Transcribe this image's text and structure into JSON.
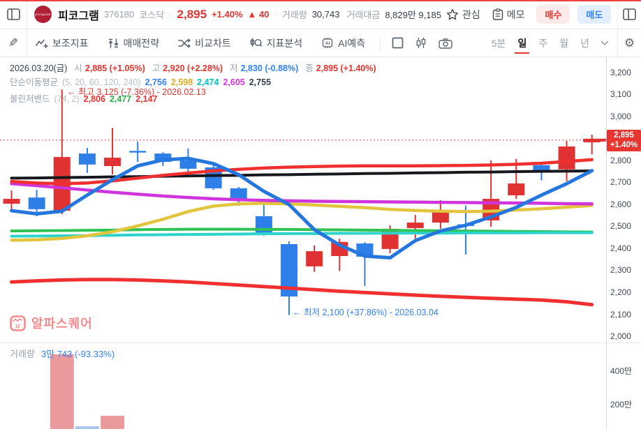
{
  "header": {
    "logo_text": "picogram",
    "stock_name": "피코그램",
    "code": "376180",
    "market": "코스닥",
    "sep": "·",
    "price": "2,895",
    "change_pct": "+1.40%",
    "change_arrow_abs": "▲ 40",
    "volume_label": "거래량",
    "volume_value": "30,743",
    "value_label": "거래대금",
    "value_value": "8,829만 9,185",
    "watch_label": "관심",
    "memo_label": "메모",
    "buy_label": "매수",
    "sell_label": "매도"
  },
  "toolbar": {
    "items": [
      {
        "label": "보조지표"
      },
      {
        "label": "매매전략"
      },
      {
        "label": "비교차트"
      },
      {
        "label": "지표분석"
      },
      {
        "label": "AI예측"
      }
    ],
    "ai_chip_text": "AI",
    "timeframes": [
      {
        "label": "5분",
        "active": false
      },
      {
        "label": "일",
        "active": true
      },
      {
        "label": "주",
        "active": false
      },
      {
        "label": "월",
        "active": false
      },
      {
        "label": "년",
        "active": false
      }
    ]
  },
  "chart": {
    "info_line1": {
      "date": "2026.03.20(금)",
      "open_label": "시",
      "open": "2,885 (+1.05%)",
      "high_label": "고",
      "high": "2,920 (+2.28%)",
      "low_label": "저",
      "low": "2,830 (-0.88%)",
      "close_label": "종",
      "close": "2,895 (+1.40%)"
    },
    "info_line2": {
      "name": "단순이동평균",
      "params": "(5, 20, 60, 120, 240)",
      "v1": "2,756",
      "v2": "2,598",
      "v3": "2,474",
      "v4": "2,605",
      "v5": "2,755"
    },
    "info_line3": {
      "name": "볼린저밴드",
      "params": "(74, 2)",
      "v1": "2,806",
      "v2": "2,477",
      "v3": "2,147"
    },
    "annotation_high": "← 최고 3,125 (-7.36%) - 2026.02.13",
    "annotation_low": "← 최저 2,100 (+37.86%) - 2026.03.04",
    "watermark": "알파스퀘어",
    "volume_label": "거래량",
    "volume_value": "3만 743 (-93.33%)",
    "price_marker": {
      "price": "2,895",
      "pct": "+1.40%"
    },
    "y_ticks": [
      {
        "label": "3,200",
        "price": 3200
      },
      {
        "label": "3,100",
        "price": 3100
      },
      {
        "label": "3,000",
        "price": 3000
      },
      {
        "label": "2,800",
        "price": 2800
      },
      {
        "label": "2,700",
        "price": 2700
      },
      {
        "label": "2,600",
        "price": 2600
      },
      {
        "label": "2,500",
        "price": 2500
      },
      {
        "label": "2,400",
        "price": 2400
      },
      {
        "label": "2,300",
        "price": 2300
      },
      {
        "label": "2,200",
        "price": 2200
      },
      {
        "label": "2,100",
        "price": 2100
      },
      {
        "label": "2,000",
        "price": 2000
      }
    ],
    "vol_ticks": [
      {
        "label": "400만",
        "man": 400
      },
      {
        "label": "200만",
        "man": 200
      }
    ]
  },
  "chart_data": {
    "type": "candlestick+volume",
    "period": "일",
    "y_range": [
      2000,
      3200
    ],
    "current_price": 2895,
    "current_day": {
      "date": "2026.03.20(금)",
      "open": 2885,
      "high": 2920,
      "low": 2830,
      "close": 2895,
      "volume": 30743,
      "volume_change_pct": -93.33
    },
    "annotations": [
      {
        "type": "highest",
        "price": 3125,
        "pct": "-7.36%",
        "date": "2026.02.13",
        "candle_index": 2
      },
      {
        "type": "lowest",
        "price": 2100,
        "pct": "+37.86%",
        "date": "2026.03.04",
        "candle_index": 11
      }
    ],
    "palette": {
      "up": "#e03232",
      "down": "#2e7fe8",
      "line_red": "#f03030",
      "vol_up": "#ea9a9c",
      "vol_down": "#a8c4f0"
    },
    "candles": [
      [
        2606,
        2666,
        2574,
        2628
      ],
      [
        2634,
        2669,
        2549,
        2581
      ],
      [
        2574,
        3125,
        2558,
        2818
      ],
      [
        2834,
        2860,
        2746,
        2784
      ],
      [
        2777,
        2950,
        2739,
        2815
      ],
      [
        2846,
        2888,
        2796,
        2842
      ],
      [
        2834,
        2840,
        2777,
        2796
      ],
      [
        2803,
        2857,
        2746,
        2765
      ],
      [
        2771,
        2790,
        2669,
        2676
      ],
      [
        2676,
        2682,
        2597,
        2619
      ],
      [
        2549,
        2609,
        2460,
        2467
      ],
      [
        2422,
        2435,
        2100,
        2184
      ],
      [
        2321,
        2416,
        2296,
        2390
      ],
      [
        2368,
        2447,
        2300,
        2432
      ],
      [
        2425,
        2431,
        2232,
        2365
      ],
      [
        2400,
        2508,
        2381,
        2492
      ],
      [
        2495,
        2555,
        2447,
        2520
      ],
      [
        2520,
        2622,
        2492,
        2574
      ],
      [
        2512,
        2597,
        2375,
        2510
      ],
      [
        2530,
        2803,
        2501,
        2628
      ],
      [
        2644,
        2810,
        2628,
        2698
      ],
      [
        2781,
        2785,
        2712,
        2756
      ],
      [
        2762,
        2891,
        2708,
        2866
      ],
      [
        2885,
        2920,
        2830,
        2895
      ]
    ],
    "series": [
      {
        "name": "bollinger-lower",
        "current": 2147,
        "color": "#f03030",
        "width": 5,
        "values": [
          2250,
          2255,
          2259,
          2261,
          2261,
          2259,
          2255,
          2250,
          2243,
          2236,
          2229,
          2222,
          2215,
          2208,
          2202,
          2196,
          2190,
          2185,
          2180,
          2176,
          2172,
          2168,
          2160,
          2147
        ]
      },
      {
        "name": "bollinger-mid",
        "current": 2477,
        "color": "#2fc353",
        "width": 4,
        "values": [
          2482,
          2483,
          2484,
          2485,
          2486,
          2488,
          2489,
          2490,
          2490,
          2490,
          2489,
          2489,
          2488,
          2487,
          2486,
          2485,
          2484,
          2483,
          2482,
          2481,
          2480,
          2479,
          2478,
          2477
        ]
      },
      {
        "name": "ma60",
        "current": 2474,
        "color": "#2ed3cd",
        "width": 4,
        "values": [
          2458,
          2459,
          2460,
          2461,
          2462,
          2464,
          2465,
          2466,
          2467,
          2468,
          2469,
          2470,
          2470,
          2471,
          2471,
          2472,
          2472,
          2472,
          2473,
          2473,
          2473,
          2474,
          2474,
          2474
        ]
      },
      {
        "name": "ma20",
        "current": 2598,
        "color": "#e2c53d",
        "width": 4.5,
        "values": [
          2440,
          2442,
          2448,
          2460,
          2478,
          2505,
          2535,
          2570,
          2595,
          2605,
          2608,
          2605,
          2600,
          2594,
          2588,
          2580,
          2575,
          2572,
          2570,
          2572,
          2577,
          2583,
          2590,
          2598
        ]
      },
      {
        "name": "ma120",
        "current": 2605,
        "color": "#cf35da",
        "width": 4.5,
        "values": [
          2697,
          2688,
          2678,
          2668,
          2658,
          2649,
          2641,
          2634,
          2628,
          2624,
          2621,
          2619,
          2617,
          2616,
          2615,
          2614,
          2613,
          2612,
          2611,
          2610,
          2609,
          2608,
          2606,
          2605
        ]
      },
      {
        "name": "ma240",
        "current": 2755,
        "color": "#16181d",
        "width": 4,
        "values": [
          2722,
          2723,
          2725,
          2726,
          2728,
          2729,
          2731,
          2732,
          2734,
          2735,
          2737,
          2738,
          2740,
          2741,
          2743,
          2744,
          2746,
          2747,
          2749,
          2750,
          2752,
          2753,
          2754,
          2755
        ]
      },
      {
        "name": "bollinger-upper",
        "current": 2806,
        "color": "#f03030",
        "width": 4.5,
        "values": [
          2707,
          2700,
          2697,
          2700,
          2710,
          2722,
          2735,
          2745,
          2755,
          2762,
          2768,
          2772,
          2775,
          2777,
          2778,
          2778,
          2778,
          2779,
          2780,
          2782,
          2785,
          2790,
          2798,
          2806
        ]
      },
      {
        "name": "ma5",
        "current": 2756,
        "color": "#2577dd",
        "width": 5,
        "values": [
          2574,
          2560,
          2572,
          2645,
          2715,
          2778,
          2805,
          2812,
          2788,
          2738,
          2662,
          2602,
          2488,
          2418,
          2368,
          2360,
          2438,
          2482,
          2508,
          2546,
          2589,
          2645,
          2697,
          2756
        ]
      }
    ],
    "volume_bars": [
      {
        "index": 2,
        "man": 492,
        "dir": "up"
      },
      {
        "index": 3,
        "man": 62,
        "dir": "down"
      },
      {
        "index": 4,
        "man": 125,
        "dir": "up"
      }
    ]
  }
}
